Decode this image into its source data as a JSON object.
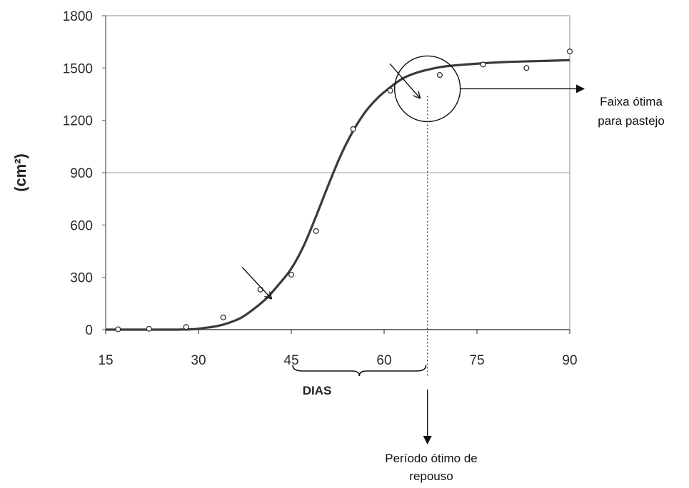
{
  "chart_data": {
    "type": "scatter",
    "xlabel": "DIAS",
    "ylabel": "(cm²)",
    "xlim": [
      15,
      90
    ],
    "ylim": [
      0,
      1800
    ],
    "xticks": [
      15,
      30,
      45,
      60,
      75,
      90
    ],
    "yticks": [
      0,
      300,
      600,
      900,
      1200,
      1500,
      1800
    ],
    "grid": "horizontal at 900 only",
    "series": [
      {
        "kind": "points",
        "x": [
          17,
          22,
          28,
          34,
          40,
          45,
          49,
          55,
          61,
          69,
          76,
          83,
          90
        ],
        "y": [
          2,
          5,
          15,
          70,
          230,
          315,
          565,
          1150,
          1370,
          1460,
          1520,
          1500,
          1595
        ]
      },
      {
        "kind": "fitted-curve",
        "x": [
          15,
          20,
          25,
          29,
          31,
          33,
          35,
          37,
          39,
          41,
          43,
          45,
          47,
          49,
          51,
          53,
          55,
          57,
          59,
          61,
          63,
          65,
          67,
          70,
          75,
          80,
          85,
          90
        ],
        "y": [
          0,
          0,
          0,
          2,
          10,
          20,
          40,
          70,
          120,
          180,
          260,
          350,
          480,
          650,
          830,
          1000,
          1140,
          1250,
          1330,
          1390,
          1440,
          1470,
          1490,
          1510,
          1525,
          1535,
          1540,
          1545
        ]
      }
    ],
    "annotations": [
      {
        "text": "Faixa ótima\npara pastejo",
        "target": "circle around plateau onset (~x 67, y 1340)"
      },
      {
        "text": "Período ótimo de\nrepouso",
        "target": "vertical dotted line at x ≈ 67"
      },
      {
        "arrow_at": [
          42,
          170
        ]
      },
      {
        "arrow_at": [
          66,
          1320
        ]
      },
      {
        "brace_from": 45,
        "brace_to": 67
      }
    ],
    "marker": {
      "x": 67,
      "y": 1340
    }
  },
  "labels": {
    "faixa_line1": "Faixa ótima",
    "faixa_line2": "para pastejo",
    "periodo_line1": "Período ótimo de",
    "periodo_line2": "repouso"
  }
}
